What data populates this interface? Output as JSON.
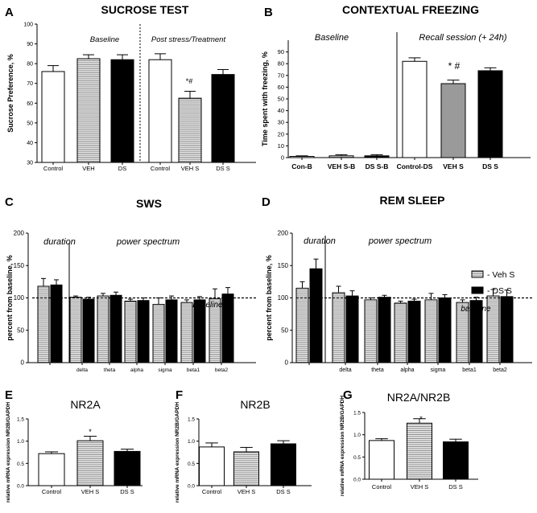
{
  "colors": {
    "white": "#ffffff",
    "hatch": "#c8c8c8",
    "gray": "#9a9a9a",
    "black": "#000000"
  },
  "chart_data": [
    {
      "panel": "A",
      "type": "bar",
      "title": "SUCROSE TEST",
      "ylabel": "Sucrose Preference, %",
      "ylim": [
        30,
        100
      ],
      "yticks": [
        30,
        40,
        50,
        60,
        70,
        80,
        90,
        100
      ],
      "section_labels": [
        "Baseline",
        "Post stress/Treatment"
      ],
      "categories": [
        "Control",
        "VEH",
        "DS",
        "Control",
        "VEH S",
        "DS S"
      ],
      "values": [
        76,
        82.5,
        82,
        82,
        62.5,
        74.5
      ],
      "errors": [
        3,
        2,
        2.5,
        3,
        3.5,
        2.5
      ],
      "fills": [
        "white",
        "hatch",
        "black",
        "white",
        "hatch",
        "black"
      ],
      "annotations": [
        "",
        "",
        "",
        "",
        "*#",
        ""
      ]
    },
    {
      "panel": "B",
      "type": "bar",
      "title": "CONTEXTUAL FREEZING",
      "ylabel": "Time spent with freezing, %",
      "ylim": [
        0,
        100
      ],
      "yticks": [
        0,
        10,
        20,
        30,
        40,
        50,
        60,
        70,
        80,
        90
      ],
      "section_labels": [
        "Baseline",
        "Recall session (+ 24h)"
      ],
      "categories": [
        "Con-B",
        "VEH S-B",
        "DS S-B",
        "Control-DS",
        "VEH S",
        "DS S"
      ],
      "values": [
        1,
        1.5,
        1.5,
        82,
        63,
        74
      ],
      "errors": [
        0.5,
        1,
        1,
        3,
        3,
        2.5
      ],
      "fills": [
        "white",
        "hatch",
        "black",
        "white",
        "gray",
        "black"
      ],
      "annotations": [
        "",
        "",
        "",
        "",
        "* #",
        ""
      ]
    },
    {
      "panel": "C",
      "type": "bar",
      "title": "SWS",
      "ylabel": "percent from baseline, %",
      "ylim": [
        0,
        200
      ],
      "yticks": [
        0,
        50,
        100,
        150,
        200
      ],
      "section_labels": [
        "duration",
        "power spectrum"
      ],
      "baseline_label": "baseline",
      "baseline_value": 100,
      "categories": [
        "",
        "delta",
        "theta",
        "alpha",
        "sigma",
        "beta1",
        "beta2"
      ],
      "series": [
        {
          "name": "Veh S",
          "fill": "hatch",
          "values": [
            118,
            101,
            103,
            95,
            90,
            93,
            99
          ],
          "errors": [
            12,
            2,
            4,
            3,
            10,
            4,
            15
          ]
        },
        {
          "name": "DS S",
          "fill": "black",
          "values": [
            120,
            98,
            104,
            96,
            97,
            97,
            106
          ],
          "errors": [
            8,
            3,
            5,
            4,
            6,
            5,
            10
          ]
        }
      ]
    },
    {
      "panel": "D",
      "type": "bar",
      "title": "REM SLEEP",
      "ylabel": "percent from baseline, %",
      "ylim": [
        0,
        200
      ],
      "yticks": [
        0,
        50,
        100,
        150,
        200
      ],
      "section_labels": [
        "duration",
        "power spectrum"
      ],
      "baseline_label": "baseline",
      "baseline_value": 100,
      "legend": [
        "- Veh S",
        "- DS  S"
      ],
      "categories": [
        "",
        "delta",
        "theta",
        "alpha",
        "sigma",
        "beta1",
        "beta2"
      ],
      "series": [
        {
          "name": "Veh S",
          "fill": "hatch",
          "values": [
            115,
            108,
            97,
            92,
            97,
            93,
            103
          ],
          "errors": [
            10,
            10,
            3,
            3,
            10,
            4,
            10
          ]
        },
        {
          "name": "DS S",
          "fill": "black",
          "values": [
            145,
            103,
            101,
            95,
            100,
            96,
            102
          ],
          "errors": [
            15,
            8,
            3,
            3,
            5,
            5,
            10
          ]
        }
      ],
      "annotations": [
        "",
        "*",
        "",
        "",
        "",
        "",
        "",
        "",
        "",
        "",
        "",
        "",
        "",
        ""
      ]
    },
    {
      "panel": "E",
      "type": "bar",
      "title": "NR2A",
      "ylabel": "relative mRNA expression NR2B/GAPDH",
      "ylim": [
        0,
        1.5
      ],
      "yticks": [
        0.0,
        0.5,
        1.0,
        1.5
      ],
      "categories": [
        "Control",
        "VEH S",
        "DS  S"
      ],
      "values": [
        0.72,
        1.01,
        0.77
      ],
      "errors": [
        0.04,
        0.1,
        0.05
      ],
      "fills": [
        "white",
        "hatch",
        "black"
      ],
      "annotations": [
        "",
        "*",
        ""
      ]
    },
    {
      "panel": "F",
      "type": "bar",
      "title": "NR2B",
      "ylabel": "relative mRNA expression NR2B/GAPDH",
      "ylim": [
        0,
        1.5
      ],
      "yticks": [
        0.0,
        0.5,
        1.0,
        1.5
      ],
      "categories": [
        "Control",
        "VEH S",
        "DS  S"
      ],
      "values": [
        0.87,
        0.76,
        0.94
      ],
      "errors": [
        0.09,
        0.1,
        0.07
      ],
      "fills": [
        "white",
        "hatch",
        "black"
      ],
      "annotations": [
        "",
        "",
        ""
      ]
    },
    {
      "panel": "G",
      "type": "bar",
      "title": "NR2A/NR2B",
      "ylabel": "relative mRNA expression NR2B/GAPDH",
      "ylim": [
        0,
        1.5
      ],
      "yticks": [
        0.0,
        0.5,
        1.0,
        1.5
      ],
      "categories": [
        "Control",
        "VEH S",
        "DS  S"
      ],
      "values": [
        0.87,
        1.26,
        0.84
      ],
      "errors": [
        0.04,
        0.1,
        0.06
      ],
      "fills": [
        "white",
        "hatch",
        "black"
      ],
      "annotations": [
        "",
        "*",
        ""
      ]
    }
  ]
}
